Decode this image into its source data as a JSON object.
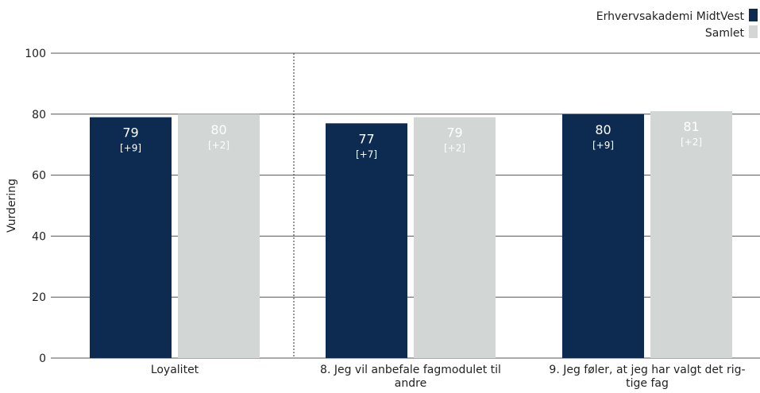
{
  "chart_data": {
    "type": "bar",
    "ylabel": "Vurdering",
    "ylim": [
      0,
      100
    ],
    "yticks": [
      0,
      20,
      40,
      60,
      80,
      100
    ],
    "grid": true,
    "legend_position": "top-right",
    "categories": [
      [
        "Loyalitet"
      ],
      [
        "8. Jeg vil anbefale fagmodulet til",
        "andre"
      ],
      [
        "9. Jeg føler, at jeg har valgt det rig-",
        "tige fag"
      ]
    ],
    "series": [
      {
        "name": "Erhvervsakademi MidtVest",
        "color": "#0d2b50",
        "label_color": "#ffffff",
        "values": [
          79,
          77,
          80
        ],
        "value_labels": [
          "79",
          "77",
          "80"
        ],
        "sub_labels": [
          "[+9]",
          "[+7]",
          "[+9]"
        ]
      },
      {
        "name": "Samlet",
        "color": "#d2d6d5",
        "label_color": "#ffffff",
        "values": [
          80,
          79,
          81
        ],
        "value_labels": [
          "80",
          "79",
          "81"
        ],
        "sub_labels": [
          "[+2]",
          "[+2]",
          "[+2]"
        ]
      }
    ]
  }
}
